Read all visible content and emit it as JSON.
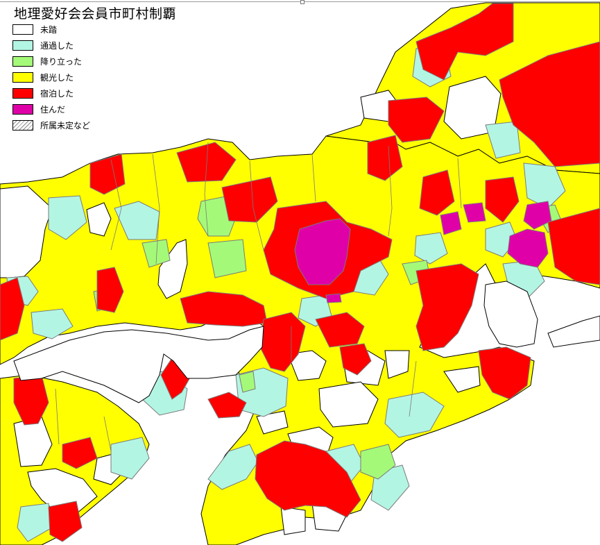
{
  "map": {
    "title": "地理愛好会会員市町村制覇",
    "legend": [
      {
        "label": "未踏",
        "color": "#ffffff"
      },
      {
        "label": "通過した",
        "color": "#b3f5e3"
      },
      {
        "label": "降り立った",
        "color": "#a4fa78"
      },
      {
        "label": "観光した",
        "color": "#ffff00"
      },
      {
        "label": "宿泊した",
        "color": "#ff0000"
      },
      {
        "label": "住んだ",
        "color": "#e000a8"
      },
      {
        "label": "所属未定など",
        "color": "hatched"
      }
    ],
    "colors": {
      "sea": "#ffffff",
      "border": "#7a7a7a",
      "outline": "#000000",
      "unvisited": "#ffffff",
      "passed": "#b3f5e3",
      "stopped": "#a4fa78",
      "sightseeing": "#ffff00",
      "stayed": "#ff0000",
      "lived": "#e000a8"
    }
  }
}
